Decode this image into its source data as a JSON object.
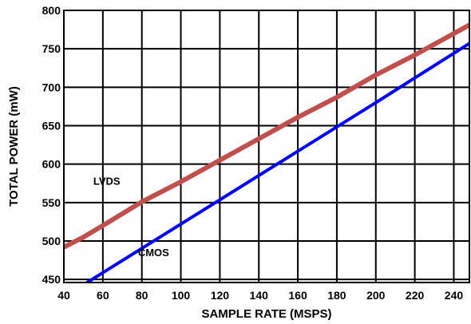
{
  "chart_data": {
    "type": "line",
    "title": "",
    "xlabel": "SAMPLE RATE (MSPS)",
    "ylabel": "TOTAL POWER (mW)",
    "xlim": [
      40,
      248
    ],
    "ylim": [
      446,
      800
    ],
    "xticks": [
      40,
      60,
      80,
      100,
      120,
      140,
      160,
      180,
      200,
      220,
      240
    ],
    "yticks": [
      450,
      500,
      550,
      600,
      650,
      700,
      750,
      800
    ],
    "grid": true,
    "legend": "none",
    "series": [
      {
        "name": "LVDS",
        "color": "#c0504d",
        "x": [
          40,
          50,
          60,
          80,
          100,
          120,
          140,
          160,
          180,
          200,
          210,
          220,
          248
        ],
        "y": [
          492,
          505,
          520,
          551,
          577,
          605,
          633,
          661,
          687,
          716,
          729,
          742,
          781
        ]
      },
      {
        "name": "CMOS",
        "color": "#0000ff",
        "x": [
          50,
          100,
          150,
          200,
          248
        ],
        "y": [
          443,
          522,
          601,
          680,
          757
        ]
      }
    ],
    "annotations": [
      {
        "text": "LVDS",
        "x": 62,
        "y": 573
      },
      {
        "text": "CMOS",
        "x": 86,
        "y": 480
      }
    ]
  }
}
